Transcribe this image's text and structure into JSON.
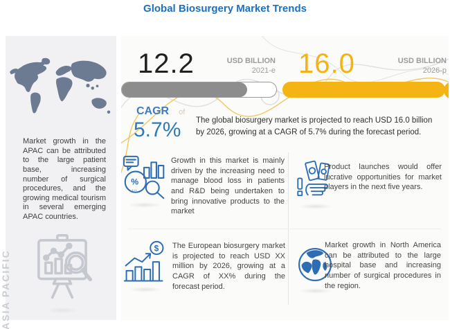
{
  "header": {
    "title": "Global Biosurgery Market Trends"
  },
  "left_panel": {
    "region_label": "ASIA PACIFIC",
    "paragraph": "Market growth in the APAC can be attributed to the large patient base, increasing number of surgical procedures, and the growing medical tourism in several emerging APAC countries."
  },
  "stats": {
    "current": {
      "value": "12.2",
      "unit": "USD BILLION",
      "year": "2021-e",
      "bar_fill_percent": 81
    },
    "projected": {
      "value": "16.0",
      "unit": "USD BILLION",
      "year": "2026-p",
      "bar_fill_percent": 100
    },
    "cagr": {
      "label": "CAGR",
      "connector": "of",
      "value": "5.7%"
    },
    "summary": "The global biosurgery market is projected to reach USD 16.0 billion by 2026, growing at a CAGR of 5.7% during the forecast period."
  },
  "quadrants": [
    {
      "icon": "market-analysis-icon",
      "text": "Growth in this market is mainly driven by the increasing need to manage blood loss in patients and R&D being undertaken to bring innovative products to the market"
    },
    {
      "icon": "money-hand-icon",
      "text": "Product launches would offer lucrative opportunities for market players in the next five years."
    },
    {
      "icon": "growth-chart-dollar-icon",
      "text": "The European biosurgery market is projected to reach USD XX million by 2026, growing at a CAGR of XX% during the forecast period."
    },
    {
      "icon": "globe-icon",
      "text": "Market growth in North America can be attributed to the large hospital base and increasing number of surgical procedures in the region."
    }
  ],
  "colors": {
    "title_blue": "#1B70C0",
    "number_dark": "#212121",
    "accent_yellow": "#F3B313",
    "cagr_blue": "#2F7AB8",
    "icon_blue": "#2E6DB4",
    "bar_gray": "#8D8D8D",
    "label_gray": "#9C9C9C",
    "panel_gray_bg": "#F1F1F3",
    "panel_cream_bg": "#FBFBF9",
    "map_slate": "#6C7A92",
    "region_label_gray": "#C9CCD2"
  },
  "chart_data": {
    "type": "bar",
    "title": "Global Biosurgery Market Trends",
    "categories": [
      "2021-e",
      "2026-p"
    ],
    "values": [
      12.2,
      16.0
    ],
    "unit": "USD Billion",
    "cagr_percent": 5.7
  }
}
